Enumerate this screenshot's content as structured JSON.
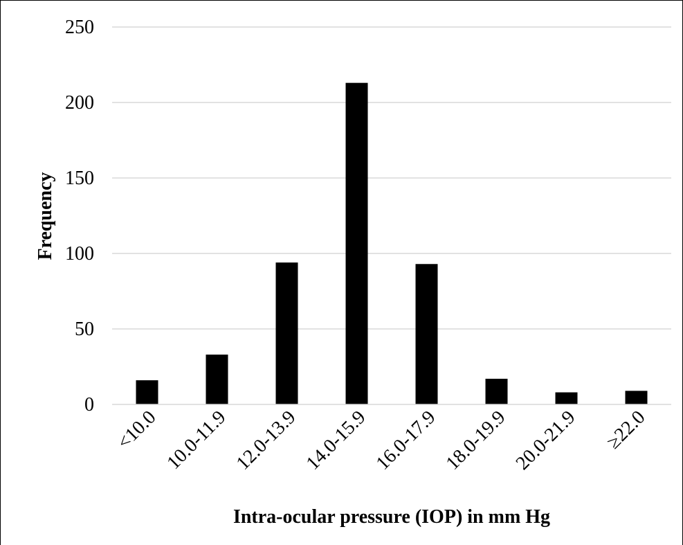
{
  "chart_data": {
    "type": "bar",
    "title": "",
    "xlabel": "Intra-ocular pressure (IOP) in mm Hg",
    "ylabel": "Frequency",
    "categories": [
      "<10.0",
      "10.0-11.9",
      "12.0-13.9",
      "14.0-15.9",
      "16.0-17.9",
      "18.0-19.9",
      "20.0-21.9",
      "≥22.0"
    ],
    "values": [
      16,
      33,
      94,
      213,
      93,
      17,
      8,
      9
    ],
    "ylim": [
      0,
      250
    ],
    "yticks": [
      0,
      50,
      100,
      150,
      200,
      250
    ],
    "grid": true,
    "legend": "none",
    "bar_color": "#000000",
    "grid_color": "#d9d9d9"
  }
}
